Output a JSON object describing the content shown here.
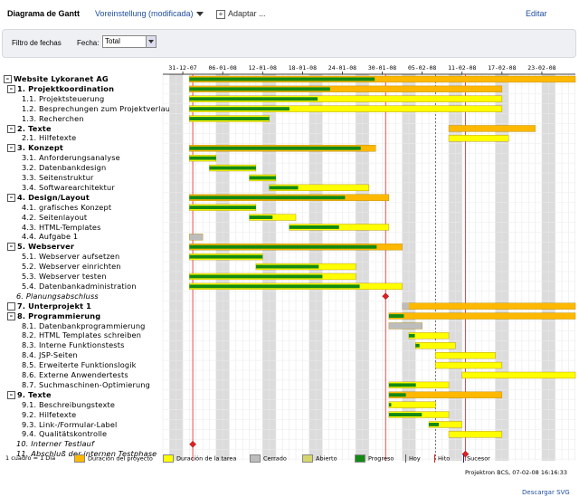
{
  "header": {
    "title": "Diagrama de Gantt",
    "preset": "Voreinstellung (modificada)",
    "adapt": "Adaptar ...",
    "edit": "Editar"
  },
  "filter": {
    "label": "Filtro de fechas",
    "date_label": "Fecha:",
    "selected": "Total"
  },
  "timeline": {
    "start": "2007-12-28",
    "end": "2008-03-02",
    "ticks": [
      "31-12-07",
      "06-01-08",
      "12-01-08",
      "18-01-08",
      "24-01-08",
      "30-01-08",
      "05-02-08",
      "11-02-08",
      "17-02-08",
      "23-02-08"
    ],
    "today": "2008-02-07"
  },
  "tasks": [
    {
      "label": "Website Lykoranet AG",
      "type": "project",
      "box": "–",
      "start": "2008-01-01",
      "end": "2008-03-02",
      "progress": 0.48
    },
    {
      "label": "1.  Projektkoordination",
      "type": "phase",
      "box": "–",
      "start": "2008-01-01",
      "end": "2008-02-16",
      "progress": 0.45
    },
    {
      "label": "1.1.  Projektsteuerung",
      "type": "task",
      "start": "2008-01-01",
      "end": "2008-02-16",
      "progress": 0.41
    },
    {
      "label": "1.2.  Besprechungen zum Projektverlauf",
      "type": "task",
      "start": "2008-01-01",
      "end": "2008-02-16",
      "progress": 0.32
    },
    {
      "label": "1.3.  Recherchen",
      "type": "task",
      "start": "2008-01-01",
      "end": "2008-01-12",
      "progress": 1.0
    },
    {
      "label": "2.  Texte",
      "type": "phase",
      "box": "–",
      "start": "2008-02-09",
      "end": "2008-02-21",
      "progress": 0
    },
    {
      "label": "2.1.  Hilfetexte",
      "type": "task",
      "start": "2008-02-09",
      "end": "2008-02-17",
      "progress": 0
    },
    {
      "label": "3.  Konzept",
      "type": "phase",
      "box": "–",
      "start": "2008-01-01",
      "end": "2008-01-28",
      "progress": 0.92
    },
    {
      "label": "3.1.  Anforderungsanalyse",
      "type": "task",
      "start": "2008-01-01",
      "end": "2008-01-04",
      "progress": 1.0
    },
    {
      "label": "3.2.  Datenbankdesign",
      "type": "task",
      "start": "2008-01-04",
      "end": "2008-01-10",
      "progress": 1.0
    },
    {
      "label": "3.3.  Seitenstruktur",
      "type": "task",
      "start": "2008-01-10",
      "end": "2008-01-13",
      "progress": 1.0
    },
    {
      "label": "3.4.  Softwarearchitektur",
      "type": "task",
      "start": "2008-01-13",
      "end": "2008-01-27",
      "progress": 0.29
    },
    {
      "label": "4.  Design/Layout",
      "type": "phase",
      "box": "–",
      "start": "2008-01-01",
      "end": "2008-01-30",
      "progress": 0.78
    },
    {
      "label": "4.1.  grafisches Konzept",
      "type": "task",
      "start": "2008-01-01",
      "end": "2008-01-10",
      "progress": 1.0
    },
    {
      "label": "4.2.  Seitenlayout",
      "type": "task",
      "start": "2008-01-10",
      "end": "2008-01-16",
      "progress": 0.5
    },
    {
      "label": "4.3.  HTML-Templates",
      "type": "task",
      "start": "2008-01-16",
      "end": "2008-01-30",
      "progress": 0.5
    },
    {
      "label": "4.4.  Aufgabe 1",
      "type": "task",
      "start": "2008-01-01",
      "end": "2008-01-02",
      "progress": 0,
      "closed": true
    },
    {
      "label": "5.  Webserver",
      "type": "phase",
      "box": "–",
      "start": "2008-01-01",
      "end": "2008-02-01",
      "progress": 0.88
    },
    {
      "label": "5.1.  Webserver aufsetzen",
      "type": "task",
      "start": "2008-01-01",
      "end": "2008-01-11",
      "progress": 1.0
    },
    {
      "label": "5.2.  Webserver einrichten",
      "type": "task",
      "start": "2008-01-11",
      "end": "2008-01-25",
      "progress": 0.63
    },
    {
      "label": "5.3.  Webserver testen",
      "type": "task",
      "start": "2008-01-01",
      "end": "2008-01-25",
      "progress": 0.8
    },
    {
      "label": "5.4.  Datenbankadministration",
      "type": "task",
      "start": "2008-01-01",
      "end": "2008-02-01",
      "progress": 0.8
    },
    {
      "label": "6.  Planungsabschluss",
      "type": "milestone",
      "date": "2008-01-30"
    },
    {
      "label": "7.  Unterprojekt 1",
      "type": "phase",
      "box": "",
      "start": "2008-02-02",
      "end": "2008-03-02",
      "progress": 0,
      "closed_part": true
    },
    {
      "label": "8.  Programmierung",
      "type": "phase",
      "box": "–",
      "start": "2008-01-31",
      "end": "2008-03-02",
      "progress": 0.08
    },
    {
      "label": "8.1.  Datenbankprogrammierung",
      "type": "task",
      "start": "2008-01-31",
      "end": "2008-02-04",
      "progress": 0,
      "closed": true
    },
    {
      "label": "8.2.  HTML Templates schreiben",
      "type": "task",
      "start": "2008-02-03",
      "end": "2008-02-08",
      "progress": 0.15
    },
    {
      "label": "8.3.  Interne Funktionstests",
      "type": "task",
      "start": "2008-02-04",
      "end": "2008-02-09",
      "progress": 0.1
    },
    {
      "label": "8.4.  JSP-Seiten",
      "type": "task",
      "start": "2008-02-07",
      "end": "2008-02-15",
      "progress": 0
    },
    {
      "label": "8.5.  Erweiterte Funktionslogik",
      "type": "task",
      "start": "2008-02-07",
      "end": "2008-02-16",
      "progress": 0
    },
    {
      "label": "8.6.  Externe Anwendertests",
      "type": "task",
      "start": "2008-02-11",
      "end": "2008-03-02",
      "progress": 0
    },
    {
      "label": "8.7.  Suchmaschinen-Optimierung",
      "type": "task",
      "start": "2008-01-31",
      "end": "2008-02-08",
      "progress": 0.45
    },
    {
      "label": "9.  Texte",
      "type": "phase",
      "box": "–",
      "start": "2008-01-31",
      "end": "2008-02-16",
      "progress": 0.15
    },
    {
      "label": "9.1.  Beschreibungstexte",
      "type": "task",
      "start": "2008-01-31",
      "end": "2008-02-06",
      "progress": 0.05
    },
    {
      "label": "9.2.  Hilfetexte",
      "type": "task",
      "start": "2008-01-31",
      "end": "2008-02-08",
      "progress": 0.55
    },
    {
      "label": "9.3.  Link-/Formular-Label",
      "type": "task",
      "start": "2008-02-06",
      "end": "2008-02-10",
      "progress": 0.3
    },
    {
      "label": "9.4.  Qualitätskontrolle",
      "type": "task",
      "start": "2008-02-09",
      "end": "2008-02-16",
      "progress": 0
    },
    {
      "label": "10.  Interner Testlauf",
      "type": "milestone",
      "date": "2008-01-01"
    },
    {
      "label": "11.  Abschluß der internen Testphase",
      "type": "milestone",
      "date": "2008-02-11"
    }
  ],
  "legend": {
    "scale": "1 cuadro = 1 Día",
    "items": [
      {
        "label": "Duración del proyecto",
        "color": "#ffb800"
      },
      {
        "label": "Duración de la tarea",
        "color": "#ffff00"
      },
      {
        "label": "Cerrado",
        "color": "#bdbdbd"
      },
      {
        "label": "Abierto",
        "color": "#d6d66e"
      },
      {
        "label": "Progreso",
        "color": "#138a13"
      },
      {
        "label": "Hoy",
        "color": "#555555"
      },
      {
        "label": "Hito",
        "color": "#e02020"
      },
      {
        "label": "Sucesor",
        "color": "#1c1c9c"
      }
    ]
  },
  "stamp": "Projektron BCS, 07-02-08   16:16:33",
  "download": "Descargar SVG"
}
